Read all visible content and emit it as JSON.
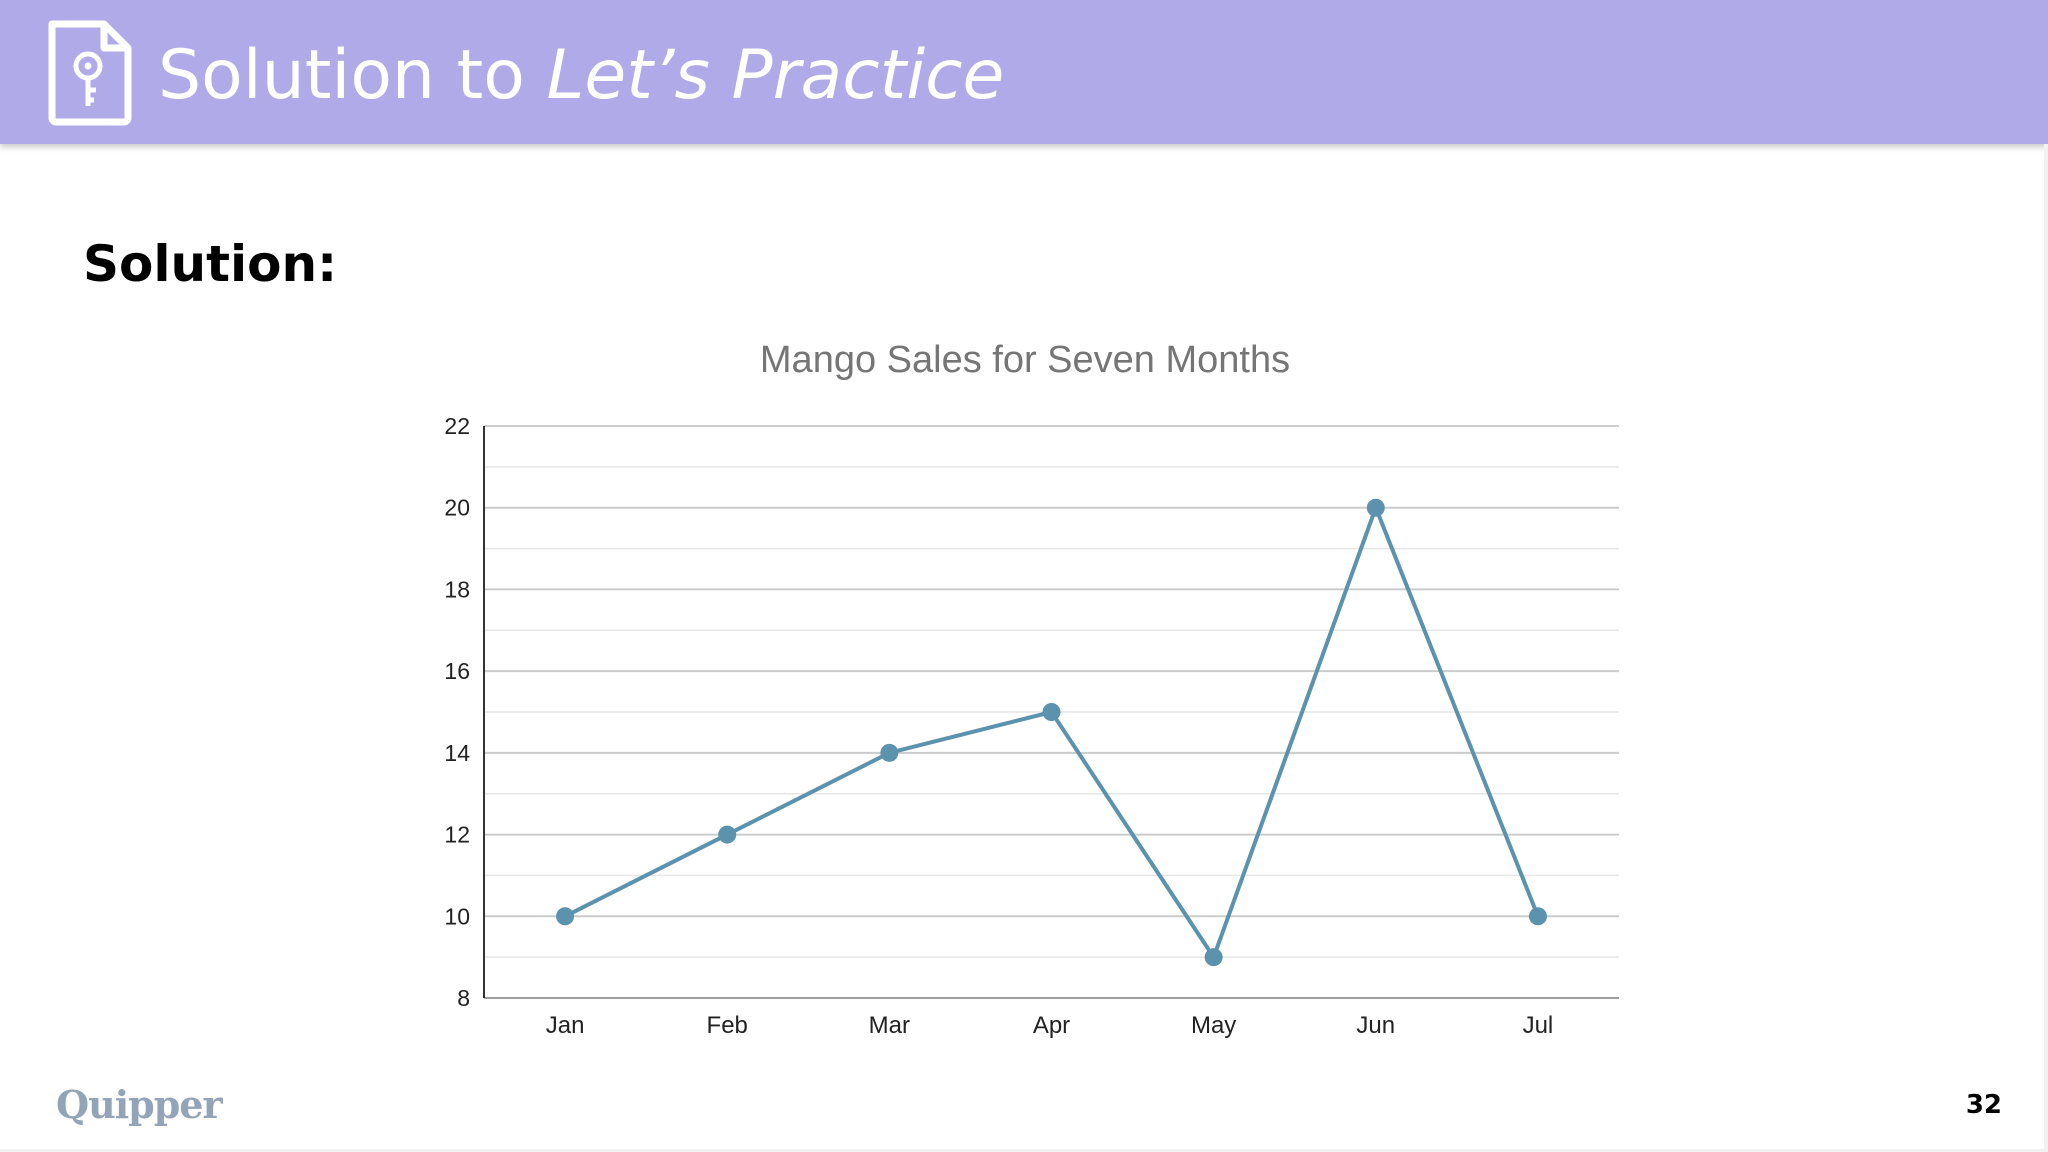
{
  "header": {
    "title_plain": "Solution to ",
    "title_italic": "Let’s Practice",
    "icon": "document-key-icon",
    "background": "#b0aae8"
  },
  "body": {
    "label": "Solution:"
  },
  "chart_data": {
    "type": "line",
    "title": "Mango Sales for Seven Months",
    "xlabel": "",
    "ylabel": "",
    "categories": [
      "Jan",
      "Feb",
      "Mar",
      "Apr",
      "May",
      "Jun",
      "Jul"
    ],
    "values": [
      10,
      12,
      14,
      15,
      9,
      20,
      10
    ],
    "ylim": [
      8,
      22
    ],
    "yticks": [
      8,
      10,
      12,
      14,
      16,
      18,
      20,
      22
    ],
    "grid": true,
    "legend": "none",
    "color": "#5b92ad"
  },
  "footer": {
    "logo": "Quipper",
    "page_number": "32"
  }
}
